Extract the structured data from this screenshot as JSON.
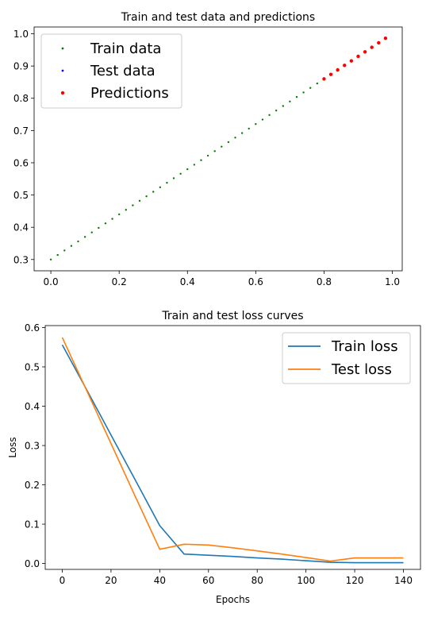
{
  "chart_data": [
    {
      "type": "scatter",
      "title": "Train and test data and predictions",
      "xlabel": "",
      "ylabel": "",
      "xlim": [
        -0.049,
        1.029
      ],
      "ylim": [
        0.265,
        1.021
      ],
      "xticks": [
        0.0,
        0.2,
        0.4,
        0.6,
        0.8,
        1.0
      ],
      "xtick_labels": [
        "0.0",
        "0.2",
        "0.4",
        "0.6",
        "0.8",
        "1.0"
      ],
      "yticks": [
        0.3,
        0.4,
        0.5,
        0.6,
        0.7,
        0.8,
        0.9,
        1.0
      ],
      "ytick_labels": [
        "0.3",
        "0.4",
        "0.5",
        "0.6",
        "0.7",
        "0.8",
        "0.9",
        "1.0"
      ],
      "grid": false,
      "legend_position": "top-left",
      "series": [
        {
          "name": "Train data",
          "color": "#008000",
          "start": 0.0,
          "stop": 0.8,
          "step": 0.02,
          "weight": 0.7,
          "bias": 0.3
        },
        {
          "name": "Test data",
          "color": "#0000ff",
          "start": 0.8,
          "stop": 1.0,
          "step": 0.02,
          "weight": 0.7,
          "bias": 0.3
        },
        {
          "name": "Predictions",
          "color": "#ff0000",
          "x": [
            0.8,
            0.82,
            0.84,
            0.86,
            0.88,
            0.9,
            0.92,
            0.94,
            0.96,
            0.98
          ],
          "y": [
            0.86,
            0.874,
            0.888,
            0.902,
            0.916,
            0.93,
            0.944,
            0.958,
            0.972,
            0.986
          ]
        }
      ]
    },
    {
      "type": "line",
      "title": "Train and test loss curves",
      "xlabel": "Epochs",
      "ylabel": "Loss",
      "xlim": [
        -7,
        147
      ],
      "ylim": [
        -0.015,
        0.605
      ],
      "xticks": [
        0,
        20,
        40,
        60,
        80,
        100,
        120,
        140
      ],
      "xtick_labels": [
        "0",
        "20",
        "40",
        "60",
        "80",
        "100",
        "120",
        "140"
      ],
      "yticks": [
        0.0,
        0.1,
        0.2,
        0.3,
        0.4,
        0.5,
        0.6
      ],
      "ytick_labels": [
        "0.0",
        "0.1",
        "0.2",
        "0.3",
        "0.4",
        "0.5",
        "0.6"
      ],
      "grid": false,
      "legend_position": "top-right",
      "x": [
        0,
        10,
        20,
        30,
        40,
        50,
        60,
        70,
        80,
        90,
        100,
        110,
        120,
        130,
        140
      ],
      "series": [
        {
          "name": "Train loss",
          "color": "#1f77b4",
          "values": [
            0.556,
            0.442,
            0.327,
            0.212,
            0.096,
            0.024,
            0.021,
            0.018,
            0.014,
            0.011,
            0.007,
            0.003,
            0.002,
            0.002,
            0.002
          ]
        },
        {
          "name": "Test loss",
          "color": "#ff7f0e",
          "values": [
            0.575,
            0.44,
            0.305,
            0.17,
            0.036,
            0.049,
            0.047,
            0.04,
            0.032,
            0.024,
            0.015,
            0.006,
            0.014,
            0.014,
            0.014
          ]
        }
      ]
    }
  ]
}
